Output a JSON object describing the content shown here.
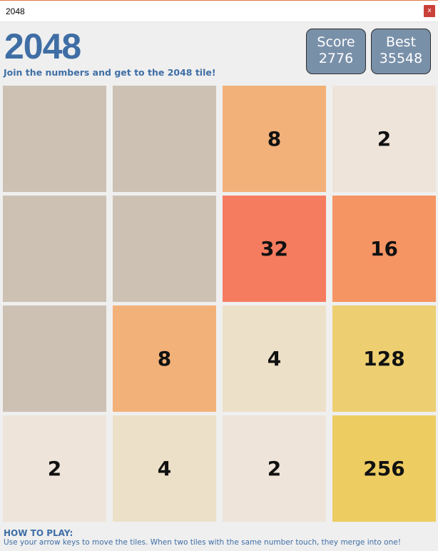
{
  "window": {
    "title": "2048",
    "close_label": "x"
  },
  "header": {
    "title": "2048",
    "subtitle": "Join the numbers and get to the 2048 tile!",
    "score_label": "Score",
    "score_value": "2776",
    "best_label": "Best",
    "best_value": "35548"
  },
  "board": {
    "rows": [
      [
        "",
        "",
        "8",
        "2"
      ],
      [
        "",
        "",
        "32",
        "16"
      ],
      [
        "",
        "8",
        "4",
        "128"
      ],
      [
        "2",
        "4",
        "2",
        "256"
      ]
    ]
  },
  "tile_colors": {
    "empty": "#cdc1b4",
    "2": "#eee4da",
    "4": "#ede0c8",
    "8": "#f2b179",
    "16": "#f59563",
    "32": "#f67c5f",
    "128": "#edcf72",
    "256": "#edcc61"
  },
  "help": {
    "heading": "HOW TO PLAY:",
    "text": "Use your arrow keys to move the tiles. When two tiles with the same number touch, they merge into one!"
  }
}
